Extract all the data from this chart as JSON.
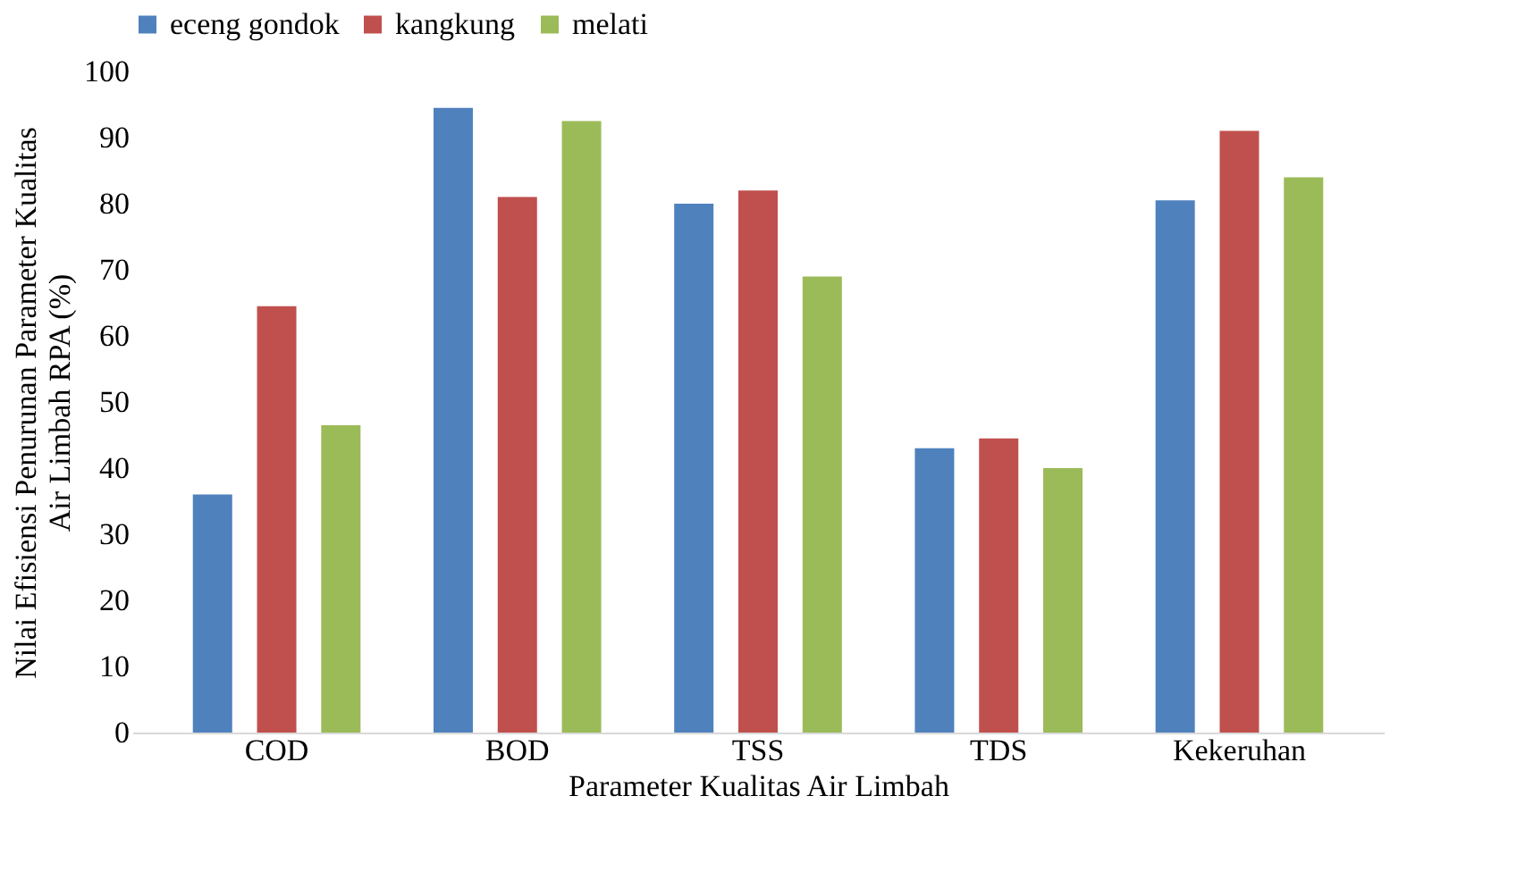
{
  "chart_data": {
    "type": "bar",
    "xlabel": "Parameter Kualitas Air Limbah",
    "ylabel": "Nilai Efisiensi Penurunan Parameter Kualitas Air Limbah RPA (%)",
    "categories": [
      "COD",
      "BOD",
      "TSS",
      "TDS",
      "Kekeruhan"
    ],
    "series": [
      {
        "name": "eceng gondok",
        "color": "#4f81bd",
        "values": [
          36,
          94.5,
          80,
          43,
          80.5
        ]
      },
      {
        "name": "kangkung",
        "color": "#c0504d",
        "values": [
          64.5,
          81,
          82,
          44.5,
          91
        ]
      },
      {
        "name": "melati",
        "color": "#9bbb59",
        "values": [
          46.5,
          92.5,
          69,
          40,
          84
        ]
      }
    ],
    "ylim": [
      0,
      100
    ],
    "yticks": [
      0,
      10,
      20,
      30,
      40,
      50,
      60,
      70,
      80,
      90,
      100
    ],
    "grid": false,
    "legend": "top"
  }
}
